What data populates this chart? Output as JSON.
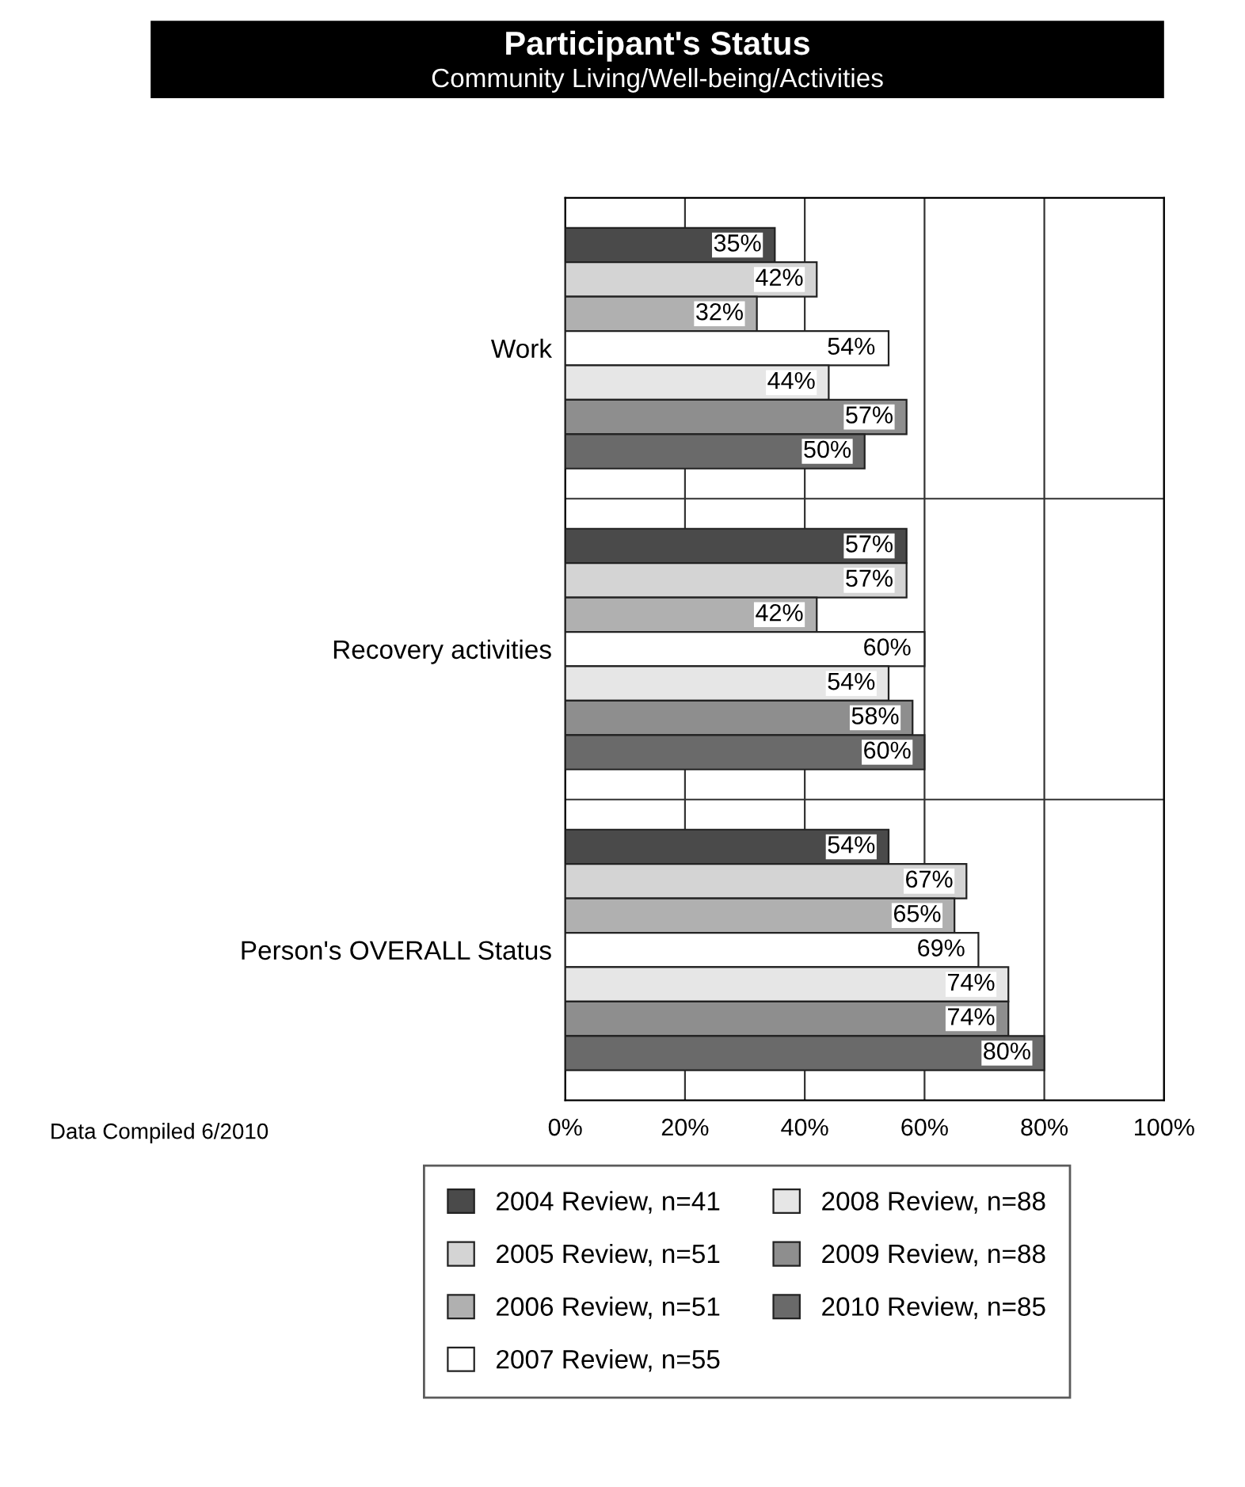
{
  "chart_data": {
    "type": "bar",
    "orientation": "horizontal",
    "title": "Participant's Status",
    "subtitle": "Community Living/Well-being/Activities",
    "categories": [
      "Work",
      "Recovery activities",
      "Person's OVERALL Status"
    ],
    "series": [
      {
        "name": "2004 Review, n=41",
        "color": "#4a4a4a",
        "values": [
          35,
          57,
          54
        ],
        "value_labels": [
          "35%",
          "57%",
          "54%"
        ]
      },
      {
        "name": "2005 Review, n=51",
        "color": "#d4d4d4",
        "values": [
          42,
          57,
          67
        ],
        "value_labels": [
          "42%",
          "57%",
          "67%"
        ]
      },
      {
        "name": "2006 Review, n=51",
        "color": "#b0b0b0",
        "values": [
          32,
          42,
          65
        ],
        "value_labels": [
          "32%",
          "42%",
          "65%"
        ]
      },
      {
        "name": "2007 Review, n=55",
        "color": "#ffffff",
        "values": [
          54,
          60,
          69
        ],
        "value_labels": [
          "54%",
          "60%",
          "69%"
        ]
      },
      {
        "name": "2008 Review, n=88",
        "color": "#e6e6e6",
        "values": [
          44,
          54,
          74
        ],
        "value_labels": [
          "44%",
          "54%",
          "74%"
        ]
      },
      {
        "name": "2009 Review, n=88",
        "color": "#8e8e8e",
        "values": [
          57,
          58,
          74
        ],
        "value_labels": [
          "57%",
          "58%",
          "74%"
        ]
      },
      {
        "name": "2010 Review, n=85",
        "color": "#6a6a6a",
        "values": [
          50,
          60,
          80
        ],
        "value_labels": [
          "50%",
          "60%",
          "80%"
        ]
      }
    ],
    "xlim": [
      0,
      100
    ],
    "xticks": [
      {
        "value": 0,
        "label": "0%"
      },
      {
        "value": 20,
        "label": "20%"
      },
      {
        "value": 40,
        "label": "40%"
      },
      {
        "value": 60,
        "label": "60%"
      },
      {
        "value": 80,
        "label": "80%"
      },
      {
        "value": 100,
        "label": "100%"
      }
    ],
    "grid": "x",
    "legend": "bottom",
    "annotations": [
      "Data Compiled 6/2010"
    ]
  }
}
